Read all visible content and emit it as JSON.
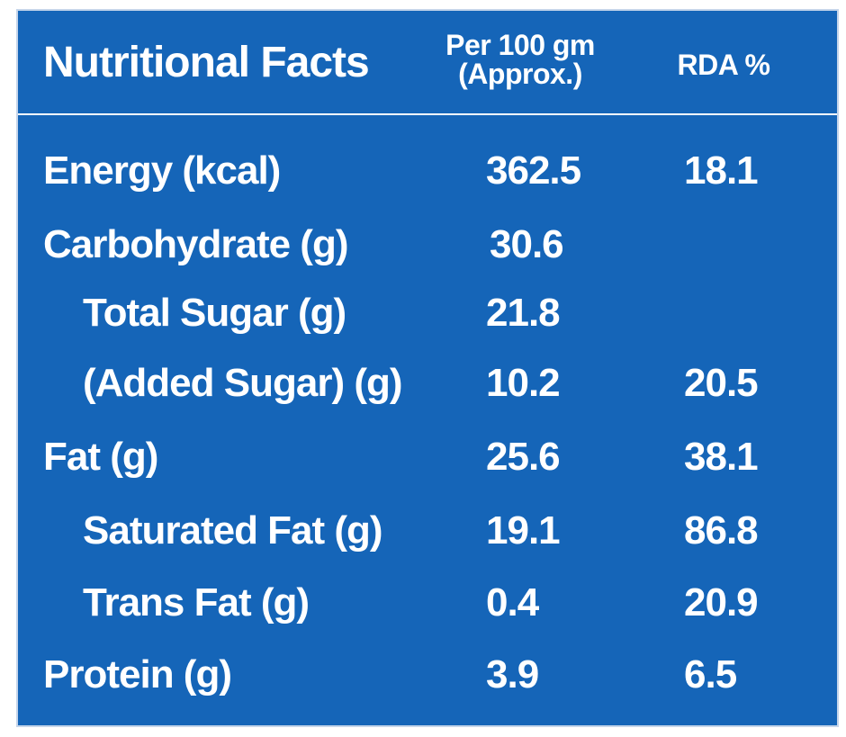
{
  "header": {
    "title": "Nutritional Facts",
    "per_100_line1": "Per 100 gm",
    "per_100_line2": "(Approx.)",
    "rda": "RDA %"
  },
  "rows": [
    {
      "label": "Energy (kcal)",
      "per100": "362.5",
      "rda": "18.1",
      "indent": false
    },
    {
      "label": "Carbohydrate (g)",
      "per100": "30.6",
      "rda": "",
      "indent": false
    },
    {
      "label": "Total Sugar (g)",
      "per100": "21.8",
      "rda": "",
      "indent": true
    },
    {
      "label": "(Added Sugar) (g)",
      "per100": "10.2",
      "rda": "20.5",
      "indent": true
    },
    {
      "label": "Fat (g)",
      "per100": "25.6",
      "rda": "38.1",
      "indent": false
    },
    {
      "label": "Saturated Fat (g)",
      "per100": "19.1",
      "rda": "86.8",
      "indent": true
    },
    {
      "label": "Trans Fat (g)",
      "per100": "0.4",
      "rda": "20.9",
      "indent": true
    },
    {
      "label": "Protein (g)",
      "per100": "3.9",
      "rda": "6.5",
      "indent": false
    }
  ],
  "colors": {
    "background": "#1565b8",
    "text": "#ffffff"
  }
}
